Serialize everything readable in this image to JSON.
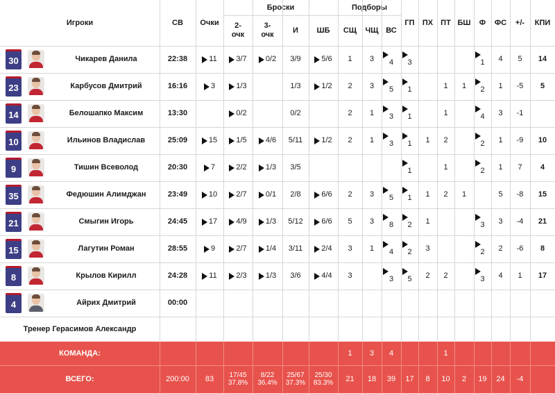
{
  "headers": {
    "players": "Игроки",
    "min": "СВ",
    "points": "Очки",
    "shots": "Броски",
    "two": "2-очк",
    "three": "3-очк",
    "fg": "И",
    "ft": "ШБ",
    "rebounds": "Подборы",
    "oreb": "СЩ",
    "dreb": "ЧЩ",
    "treb": "ВС",
    "ast": "ГП",
    "stl": "ПХ",
    "tov": "ПТ",
    "blk": "БШ",
    "fouls": "Ф",
    "fouls_drawn": "ФС",
    "pm": "+/-",
    "eff": "КПИ"
  },
  "players": [
    {
      "no": "30",
      "name": "Чикарев Данила",
      "min": "22:38",
      "pts": "11",
      "two": "3/7",
      "three": "0/2",
      "fg": "3/9",
      "ft": "5/6",
      "oreb": "1",
      "dreb": "3",
      "treb": "4",
      "ast": "3",
      "stl": "",
      "tov": "",
      "blk": "",
      "pf": "1",
      "fd": "4",
      "pm": "5",
      "eff": "14"
    },
    {
      "no": "23",
      "name": "Карбусов Дмитрий",
      "min": "16:16",
      "pts": "3",
      "two": "1/3",
      "three": "",
      "fg": "1/3",
      "ft": "1/2",
      "oreb": "2",
      "dreb": "3",
      "treb": "5",
      "ast": "1",
      "stl": "",
      "tov": "1",
      "blk": "1",
      "pf": "2",
      "fd": "1",
      "pm": "-5",
      "eff": "5"
    },
    {
      "no": "14",
      "name": "Белошапко Максим",
      "min": "13:30",
      "pts": "",
      "two": "0/2",
      "three": "",
      "fg": "0/2",
      "ft": "",
      "oreb": "2",
      "dreb": "1",
      "treb": "3",
      "ast": "1",
      "stl": "",
      "tov": "1",
      "blk": "",
      "pf": "4",
      "fd": "3",
      "pm": "-1",
      "eff": ""
    },
    {
      "no": "10",
      "name": "Ильинов Владислав",
      "min": "25:09",
      "pts": "15",
      "two": "1/5",
      "three": "4/6",
      "fg": "5/11",
      "ft": "1/2",
      "oreb": "2",
      "dreb": "1",
      "treb": "3",
      "ast": "1",
      "stl": "1",
      "tov": "2",
      "blk": "",
      "pf": "2",
      "fd": "1",
      "pm": "-9",
      "eff": "10"
    },
    {
      "no": "9",
      "name": "Тишин Всеволод",
      "min": "20:30",
      "pts": "7",
      "two": "2/2",
      "three": "1/3",
      "fg": "3/5",
      "ft": "",
      "oreb": "",
      "dreb": "",
      "treb": "",
      "ast": "1",
      "stl": "",
      "tov": "1",
      "blk": "",
      "pf": "2",
      "fd": "1",
      "pm": "7",
      "eff": "4"
    },
    {
      "no": "35",
      "name": "Федюшин Алимджан",
      "min": "23:49",
      "pts": "10",
      "two": "2/7",
      "three": "0/1",
      "fg": "2/8",
      "ft": "6/6",
      "oreb": "2",
      "dreb": "3",
      "treb": "5",
      "ast": "1",
      "stl": "1",
      "tov": "2",
      "blk": "1",
      "pf": "",
      "fd": "5",
      "pm": "-8",
      "eff": "15"
    },
    {
      "no": "21",
      "name": "Смыгин Игорь",
      "min": "24:45",
      "pts": "17",
      "two": "4/9",
      "three": "1/3",
      "fg": "5/12",
      "ft": "6/6",
      "oreb": "5",
      "dreb": "3",
      "treb": "8",
      "ast": "2",
      "stl": "1",
      "tov": "",
      "blk": "",
      "pf": "3",
      "fd": "3",
      "pm": "-4",
      "eff": "21"
    },
    {
      "no": "15",
      "name": "Лагутин Роман",
      "min": "28:55",
      "pts": "9",
      "two": "2/7",
      "three": "1/4",
      "fg": "3/11",
      "ft": "2/4",
      "oreb": "3",
      "dreb": "1",
      "treb": "4",
      "ast": "2",
      "stl": "3",
      "tov": "",
      "blk": "",
      "pf": "2",
      "fd": "2",
      "pm": "-6",
      "eff": "8"
    },
    {
      "no": "8",
      "name": "Крылов Кирилл",
      "min": "24:28",
      "pts": "11",
      "two": "2/3",
      "three": "1/3",
      "fg": "3/6",
      "ft": "4/4",
      "oreb": "3",
      "dreb": "",
      "treb": "3",
      "ast": "5",
      "stl": "2",
      "tov": "2",
      "blk": "",
      "pf": "3",
      "fd": "4",
      "pm": "1",
      "eff": "17"
    },
    {
      "no": "4",
      "name": "Айрих Дмитрий",
      "min": "00:00",
      "pts": "",
      "two": "",
      "three": "",
      "fg": "",
      "ft": "",
      "oreb": "",
      "dreb": "",
      "treb": "",
      "ast": "",
      "stl": "",
      "tov": "",
      "blk": "",
      "pf": "",
      "fd": "",
      "pm": "",
      "eff": ""
    }
  ],
  "coach": "Тренер Герасимов Александр",
  "team": {
    "label": "КОМАНДА:",
    "oreb": "1",
    "dreb": "3",
    "treb": "4",
    "tov": "1"
  },
  "total": {
    "label": "ВСЕГО:",
    "min": "200:00",
    "pts": "83",
    "two": "17/45",
    "two_pct": "37.8%",
    "three": "8/22",
    "three_pct": "36.4%",
    "fg": "25/67",
    "fg_pct": "37.3%",
    "ft": "25/30",
    "ft_pct": "83.3%",
    "oreb": "21",
    "dreb": "18",
    "treb": "39",
    "ast": "17",
    "stl": "8",
    "tov": "10",
    "blk": "2",
    "pf": "19",
    "fd": "24",
    "pm": "-4",
    "eff": ""
  },
  "colors": {
    "band": "#e8524c",
    "jersey": "#3d3e85",
    "jersey_trim": "#b31b2f"
  }
}
